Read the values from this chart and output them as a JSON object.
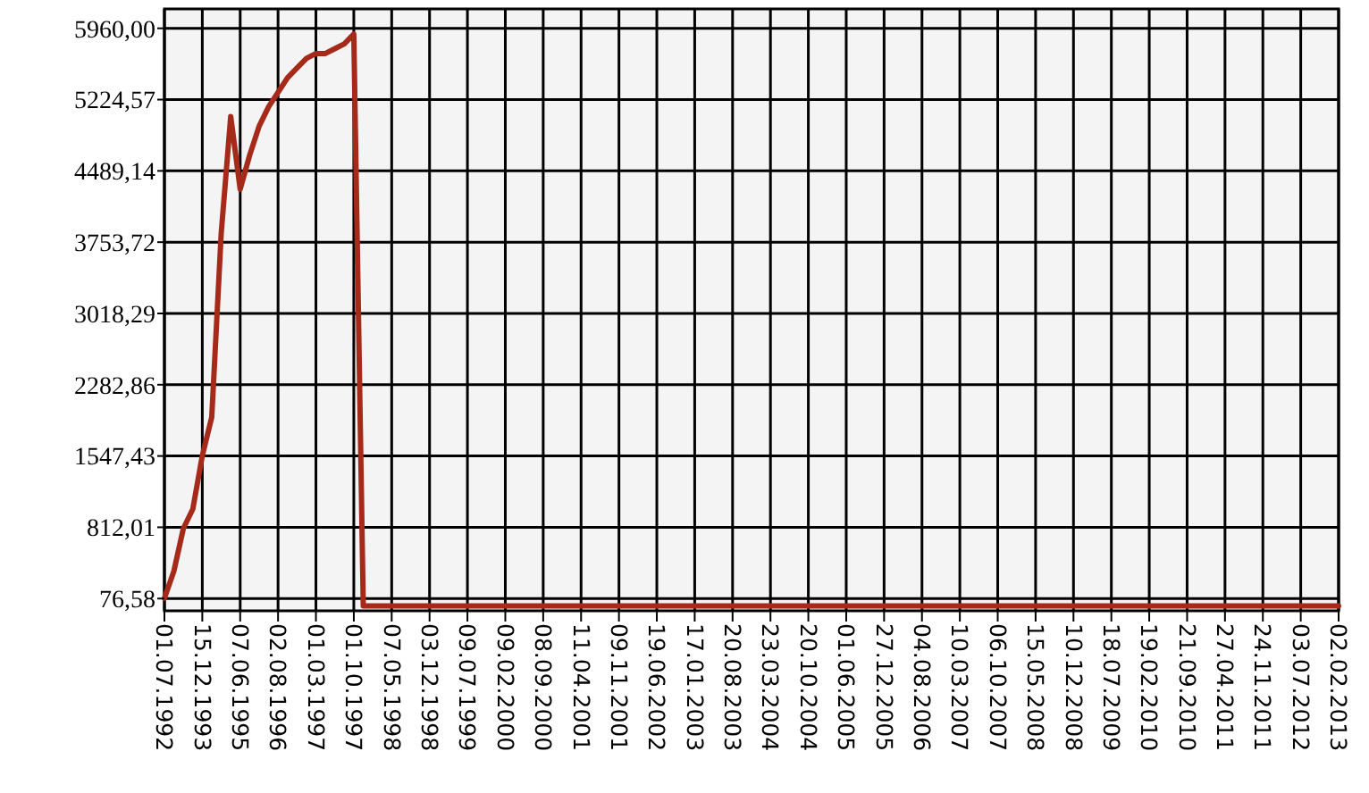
{
  "chart_data": {
    "type": "line",
    "categories": [
      "01.07.1992",
      null,
      null,
      null,
      "15.12.1993",
      null,
      null,
      null,
      "07.06.1995",
      null,
      null,
      null,
      "02.08.1996",
      null,
      null,
      null,
      "01.03.1997",
      null,
      null,
      null,
      "01.10.1997",
      null,
      null,
      null,
      "07.05.1998",
      null,
      null,
      null,
      "03.12.1998",
      null,
      null,
      null,
      "09.07.1999",
      null,
      null,
      null,
      "09.02.2000",
      null,
      null,
      null,
      "08.09.2000",
      null,
      null,
      null,
      "11.04.2001",
      null,
      null,
      null,
      "09.11.2001",
      null,
      null,
      null,
      "19.06.2002",
      null,
      null,
      null,
      "17.01.2003",
      null,
      null,
      null,
      "20.08.2003",
      null,
      null,
      null,
      "23.03.2004",
      null,
      null,
      null,
      "20.10.2004",
      null,
      null,
      null,
      "01.06.2005",
      null,
      null,
      null,
      "27.12.2005",
      null,
      null,
      null,
      "04.08.2006",
      null,
      null,
      null,
      "10.03.2007",
      null,
      null,
      null,
      "06.10.2007",
      null,
      null,
      null,
      "15.05.2008",
      null,
      null,
      null,
      "10.12.2008",
      null,
      null,
      null,
      "18.07.2009",
      null,
      null,
      null,
      "19.02.2010",
      null,
      null,
      null,
      "21.09.2010",
      null,
      null,
      null,
      "27.04.2011",
      null,
      null,
      null,
      "24.11.2011",
      null,
      null,
      null,
      "03.07.2012",
      null,
      null,
      null,
      "02.02.2013"
    ],
    "series": [
      {
        "color": "#a52a1a",
        "values": [
          80,
          360,
          800,
          1000,
          1550,
          1950,
          3850,
          5050,
          4300,
          4650,
          4950,
          5150,
          5300,
          5450,
          5550,
          5650,
          5700,
          5700,
          5750,
          5800,
          5900,
          0,
          0,
          0,
          0,
          0,
          0,
          0,
          0,
          0,
          0,
          0,
          0,
          0,
          0,
          0,
          0,
          0,
          0,
          0,
          0,
          0,
          0,
          0,
          0,
          0,
          0,
          0,
          0,
          0,
          0,
          0,
          0,
          0,
          0,
          0,
          0,
          0,
          0,
          0,
          0,
          0,
          0,
          0,
          0,
          0,
          0,
          0,
          0,
          0,
          0,
          0,
          0,
          0,
          0,
          0,
          0,
          0,
          0,
          0,
          0,
          0,
          0,
          0,
          0,
          0,
          0,
          0,
          0,
          0,
          0,
          0,
          0,
          0,
          0,
          0,
          0,
          0,
          0,
          0,
          0,
          0,
          0,
          0,
          0,
          0,
          0,
          0,
          0,
          0,
          0,
          0,
          0,
          0,
          0,
          0,
          0,
          0,
          0,
          0,
          0,
          0,
          0,
          0,
          0
        ]
      }
    ],
    "ylim": [
      -50,
      6160
    ],
    "yticks": [
      {
        "value": 76.58,
        "label": "76,58"
      },
      {
        "value": 812.01,
        "label": "812,01"
      },
      {
        "value": 1547.43,
        "label": "1547,43"
      },
      {
        "value": 2282.86,
        "label": "2282,86"
      },
      {
        "value": 3018.29,
        "label": "3018,29"
      },
      {
        "value": 3753.72,
        "label": "3753,72"
      },
      {
        "value": 4489.14,
        "label": "4489,14"
      },
      {
        "value": 5224.57,
        "label": "5224,57"
      },
      {
        "value": 5960,
        "label": "5960,00"
      }
    ],
    "grid": true,
    "marker": "none",
    "line_style": "solid"
  }
}
